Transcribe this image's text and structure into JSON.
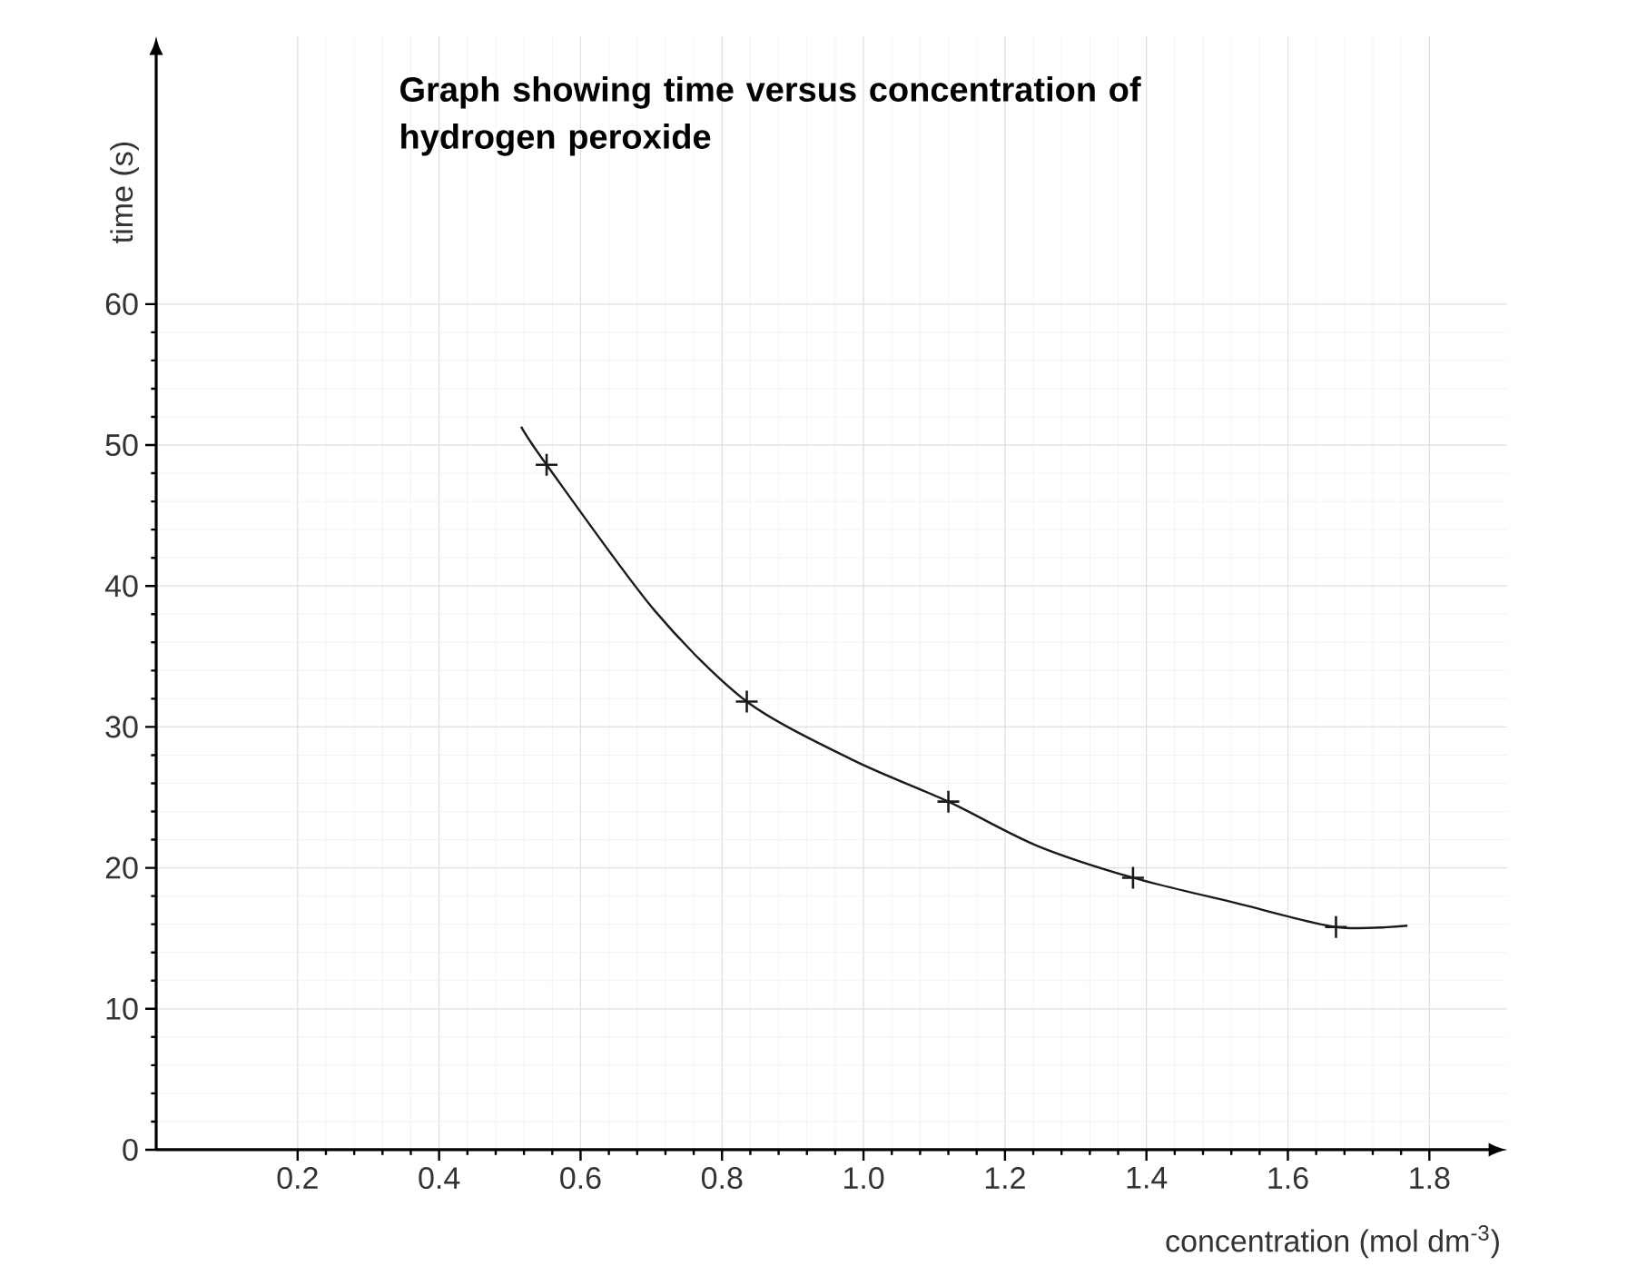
{
  "chart_data": {
    "type": "line",
    "title": "Graph showing time versus concentration of hydrogen peroxide",
    "xlabel": "concentration (mol dm$^{-3}$)",
    "ylabel": "time (s)",
    "series": [
      {
        "color": "#1a1a1a",
        "marker": "none",
        "x": [
          0.516,
          0.552,
          0.704,
          0.835,
          0.987,
          1.12,
          1.244,
          1.381,
          1.527,
          1.668,
          1.769
        ],
        "values": [
          51.3,
          48.6,
          38.3,
          31.8,
          27.6,
          24.7,
          21.6,
          19.3,
          17.5,
          15.8,
          15.9
        ]
      },
      {
        "type": "scatter",
        "color": "#1a1a1a",
        "marker": "cross",
        "x": [
          0.552,
          0.835,
          1.12,
          1.381,
          1.668
        ],
        "values": [
          48.6,
          31.8,
          24.7,
          19.3,
          15.8
        ]
      }
    ],
    "xlim": [
      0,
      1.91
    ],
    "ylim": [
      0,
      79
    ],
    "xticks": [
      0.2,
      0.4,
      0.6,
      0.8,
      {
        "value": 1.0,
        "label": "1.0"
      },
      1.2,
      1.4,
      1.6,
      1.8
    ],
    "yticks": [
      0,
      10,
      20,
      30,
      40,
      50,
      60
    ],
    "grid": true
  }
}
